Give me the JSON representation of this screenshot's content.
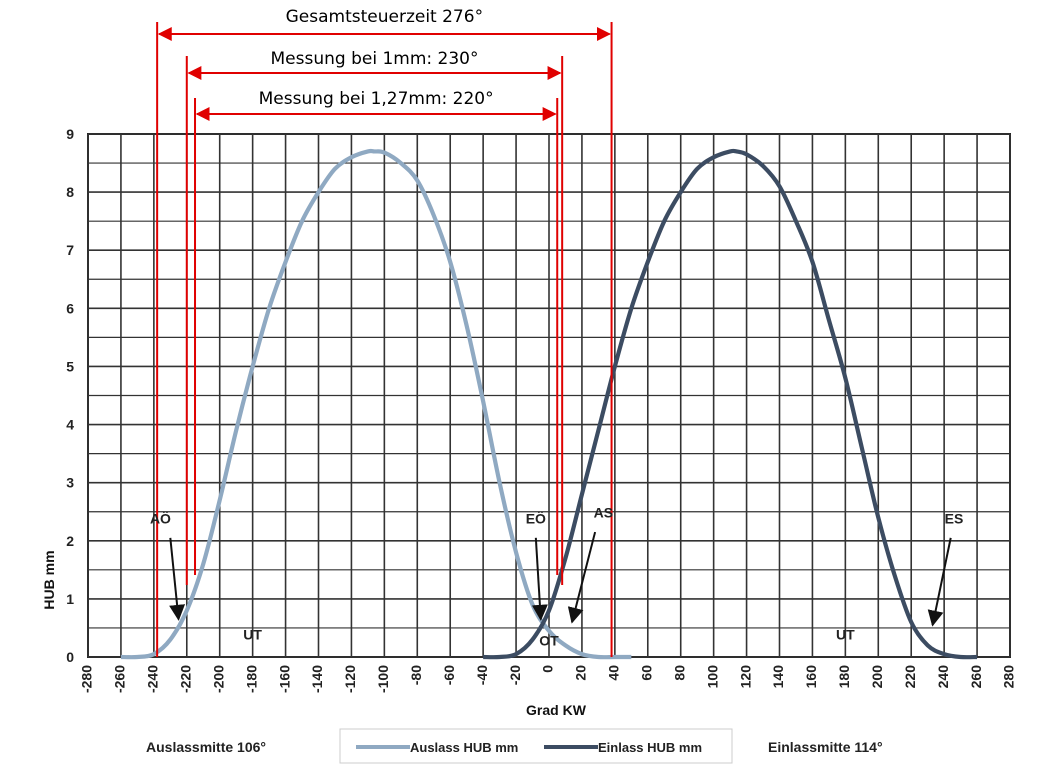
{
  "chart_data": {
    "type": "line",
    "xlabel": "Grad KW",
    "ylabel": "HUB mm",
    "xlim": [
      -280,
      280
    ],
    "ylim": [
      0,
      9
    ],
    "x_ticks": [
      "-280",
      "-260",
      "-240",
      "-220",
      "-200",
      "-180",
      "-160",
      "-140",
      "-120",
      "-100",
      "-80",
      "-60",
      "-40",
      "-20",
      "0",
      "20",
      "40",
      "60",
      "80",
      "100",
      "120",
      "140",
      "160",
      "180",
      "200",
      "220",
      "240",
      "260",
      "280"
    ],
    "y_ticks": [
      "0",
      "1",
      "2",
      "3",
      "4",
      "5",
      "6",
      "7",
      "8",
      "9"
    ],
    "grid": true,
    "series": [
      {
        "name": "Auslass HUB mm",
        "color": "#8fa9c2",
        "x": [
          -260,
          -250,
          -240,
          -230,
          -220,
          -210,
          -200,
          -190,
          -180,
          -170,
          -160,
          -150,
          -140,
          -130,
          -120,
          -110,
          -106,
          -100,
          -90,
          -80,
          -70,
          -60,
          -50,
          -40,
          -30,
          -20,
          -10,
          0,
          10,
          20,
          30,
          40,
          50
        ],
        "y": [
          0,
          0,
          0.05,
          0.3,
          0.8,
          1.6,
          2.7,
          3.9,
          5.0,
          6.0,
          6.8,
          7.5,
          8.0,
          8.4,
          8.6,
          8.7,
          8.7,
          8.68,
          8.5,
          8.2,
          7.6,
          6.8,
          5.7,
          4.4,
          3.0,
          1.8,
          0.9,
          0.45,
          0.2,
          0.05,
          0,
          0,
          0
        ]
      },
      {
        "name": "Einlass HUB mm",
        "color": "#3c4c62",
        "x": [
          -40,
          -30,
          -20,
          -10,
          0,
          10,
          20,
          30,
          40,
          50,
          60,
          70,
          80,
          90,
          100,
          110,
          114,
          120,
          130,
          140,
          150,
          160,
          170,
          180,
          190,
          200,
          210,
          220,
          230,
          240,
          250,
          260
        ],
        "y": [
          0,
          0,
          0.05,
          0.3,
          0.8,
          1.7,
          2.8,
          3.9,
          5.0,
          6.0,
          6.8,
          7.5,
          8.0,
          8.4,
          8.6,
          8.7,
          8.7,
          8.65,
          8.45,
          8.1,
          7.5,
          6.8,
          5.8,
          4.8,
          3.6,
          2.4,
          1.4,
          0.6,
          0.2,
          0.05,
          0,
          0
        ]
      }
    ],
    "annotations": [
      {
        "label": "AÖ",
        "x": -232,
        "y": 0.6
      },
      {
        "label": "EÖ",
        "x": -8,
        "y": 0.6
      },
      {
        "label": "AS",
        "x": 16,
        "y": 0.6
      },
      {
        "label": "ES",
        "x": 236,
        "y": 0.6
      },
      {
        "label": "UT",
        "x": -180,
        "y": 0.3
      },
      {
        "label": "OT",
        "x": 0,
        "y": 0.2
      },
      {
        "label": "UT",
        "x": 180,
        "y": 0.3
      }
    ],
    "duration_markers": [
      {
        "label": "Gesamtsteuerzeit 276°",
        "from": -238,
        "to": 38
      },
      {
        "label": "Messung bei 1mm: 230°",
        "from": -220,
        "to": 8
      },
      {
        "label": "Messung bei 1,27mm: 220°",
        "from": -215,
        "to": 5
      }
    ],
    "footer": {
      "left": "Auslassmitte 106°",
      "right": "Einlassmitte 114°"
    },
    "legend_position": "bottom"
  }
}
